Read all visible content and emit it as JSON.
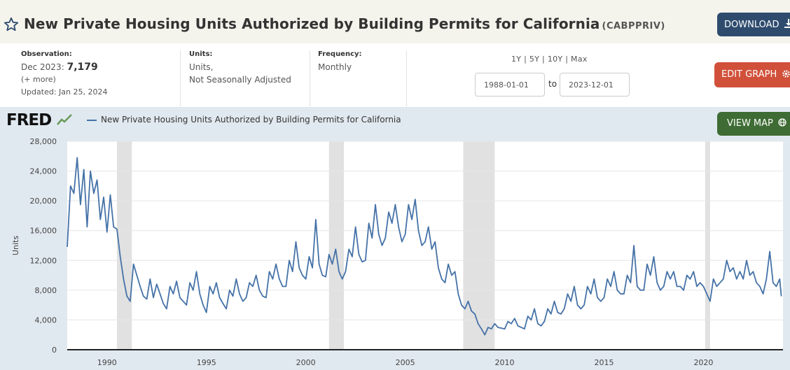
{
  "header": {
    "title": "New Private Housing Units Authorized by Building Permits for California",
    "series_id": "(CABPPRIV)",
    "download_label": "DOWNLOAD",
    "accent_color": "#2e4b6e"
  },
  "meta": {
    "observation_label": "Observation:",
    "observation_date": "Dec 2023:",
    "observation_value": "7,179",
    "more": "(+ more)",
    "updated": "Updated: Jan 25, 2024",
    "units_label": "Units:",
    "units_line1": "Units,",
    "units_line2": "Not Seasonally Adjusted",
    "frequency_label": "Frequency:",
    "frequency_value": "Monthly"
  },
  "range": {
    "options": "1Y | 5Y | 10Y | Max",
    "start": "1988-01-01",
    "to": "to",
    "end": "2023-12-01",
    "edit_label": "EDIT GRAPH"
  },
  "graph": {
    "logo": "FRED",
    "legend": "New Private Housing Units Authorized by Building Permits for California",
    "view_map_label": "VIEW MAP",
    "line_color": "#4572a7"
  },
  "chart_data": {
    "type": "line",
    "title": "",
    "xlabel": "",
    "ylabel": "Units",
    "xlim": [
      "1988-01",
      "2023-12"
    ],
    "ylim": [
      0,
      28000
    ],
    "y_ticks": [
      0,
      4000,
      8000,
      12000,
      16000,
      20000,
      24000,
      28000
    ],
    "y_tick_labels": [
      "0",
      "4,000",
      "8,000",
      "12,000",
      "16,000",
      "20,000",
      "24,000",
      "28,000"
    ],
    "x_ticks": [
      1990,
      1995,
      2000,
      2005,
      2010,
      2015,
      2020
    ],
    "x_tick_labels": [
      "1990",
      "1995",
      "2000",
      "2005",
      "2010",
      "2015",
      "2020"
    ],
    "grid": true,
    "recessions": [
      [
        "1990-07",
        "1991-03"
      ],
      [
        "2001-03",
        "2001-11"
      ],
      [
        "2007-12",
        "2009-06"
      ],
      [
        "2020-02",
        "2020-04"
      ]
    ],
    "series": [
      {
        "name": "New Private Housing Units Authorized by Building Permits for California",
        "points": [
          [
            "1988-01",
            13800
          ],
          [
            "1988-03",
            22000
          ],
          [
            "1988-05",
            21000
          ],
          [
            "1988-07",
            25800
          ],
          [
            "1988-09",
            19500
          ],
          [
            "1988-11",
            24200
          ],
          [
            "1989-01",
            16500
          ],
          [
            "1989-03",
            24000
          ],
          [
            "1989-05",
            21000
          ],
          [
            "1989-07",
            22800
          ],
          [
            "1989-09",
            17500
          ],
          [
            "1989-11",
            20500
          ],
          [
            "1990-01",
            15800
          ],
          [
            "1990-03",
            20800
          ],
          [
            "1990-05",
            16500
          ],
          [
            "1990-07",
            16200
          ],
          [
            "1990-09",
            12500
          ],
          [
            "1990-11",
            9500
          ],
          [
            "1991-01",
            7200
          ],
          [
            "1991-03",
            6500
          ],
          [
            "1991-05",
            11500
          ],
          [
            "1991-07",
            10000
          ],
          [
            "1991-09",
            8500
          ],
          [
            "1991-11",
            7200
          ],
          [
            "1992-01",
            6800
          ],
          [
            "1992-03",
            9500
          ],
          [
            "1992-05",
            7000
          ],
          [
            "1992-07",
            8800
          ],
          [
            "1992-09",
            7500
          ],
          [
            "1992-11",
            6200
          ],
          [
            "1993-01",
            5500
          ],
          [
            "1993-03",
            8500
          ],
          [
            "1993-05",
            7500
          ],
          [
            "1993-07",
            9200
          ],
          [
            "1993-09",
            7000
          ],
          [
            "1993-11",
            6500
          ],
          [
            "1994-01",
            6000
          ],
          [
            "1994-03",
            9000
          ],
          [
            "1994-05",
            8000
          ],
          [
            "1994-07",
            10500
          ],
          [
            "1994-09",
            7500
          ],
          [
            "1994-11",
            6000
          ],
          [
            "1995-01",
            5000
          ],
          [
            "1995-03",
            8500
          ],
          [
            "1995-05",
            7500
          ],
          [
            "1995-07",
            9000
          ],
          [
            "1995-09",
            7000
          ],
          [
            "1995-11",
            6200
          ],
          [
            "1996-01",
            5500
          ],
          [
            "1996-03",
            8000
          ],
          [
            "1996-05",
            7200
          ],
          [
            "1996-07",
            9500
          ],
          [
            "1996-09",
            7500
          ],
          [
            "1996-11",
            6500
          ],
          [
            "1997-01",
            7000
          ],
          [
            "1997-03",
            9000
          ],
          [
            "1997-05",
            8500
          ],
          [
            "1997-07",
            10000
          ],
          [
            "1997-09",
            8000
          ],
          [
            "1997-11",
            7200
          ],
          [
            "1998-01",
            7000
          ],
          [
            "1998-03",
            10500
          ],
          [
            "1998-05",
            9500
          ],
          [
            "1998-07",
            11500
          ],
          [
            "1998-09",
            9500
          ],
          [
            "1998-11",
            8500
          ],
          [
            "1999-01",
            8500
          ],
          [
            "1999-03",
            12000
          ],
          [
            "1999-05",
            10500
          ],
          [
            "1999-07",
            14500
          ],
          [
            "1999-09",
            11000
          ],
          [
            "1999-11",
            10000
          ],
          [
            "2000-01",
            9500
          ],
          [
            "2000-03",
            12500
          ],
          [
            "2000-05",
            11000
          ],
          [
            "2000-07",
            17500
          ],
          [
            "2000-09",
            11500
          ],
          [
            "2000-11",
            10000
          ],
          [
            "2001-01",
            9800
          ],
          [
            "2001-03",
            12800
          ],
          [
            "2001-05",
            11500
          ],
          [
            "2001-07",
            13500
          ],
          [
            "2001-09",
            10500
          ],
          [
            "2001-11",
            9500
          ],
          [
            "2002-01",
            10500
          ],
          [
            "2002-03",
            13500
          ],
          [
            "2002-05",
            12500
          ],
          [
            "2002-07",
            16500
          ],
          [
            "2002-09",
            12800
          ],
          [
            "2002-11",
            11800
          ],
          [
            "2003-01",
            12000
          ],
          [
            "2003-03",
            17000
          ],
          [
            "2003-05",
            15000
          ],
          [
            "2003-07",
            19500
          ],
          [
            "2003-09",
            15500
          ],
          [
            "2003-11",
            14000
          ],
          [
            "2004-01",
            15000
          ],
          [
            "2004-03",
            18500
          ],
          [
            "2004-05",
            17000
          ],
          [
            "2004-07",
            19500
          ],
          [
            "2004-09",
            16500
          ],
          [
            "2004-11",
            14500
          ],
          [
            "2005-01",
            15500
          ],
          [
            "2005-03",
            19500
          ],
          [
            "2005-05",
            17500
          ],
          [
            "2005-07",
            20200
          ],
          [
            "2005-09",
            16000
          ],
          [
            "2005-11",
            14000
          ],
          [
            "2006-01",
            14500
          ],
          [
            "2006-03",
            16500
          ],
          [
            "2006-05",
            13500
          ],
          [
            "2006-07",
            14500
          ],
          [
            "2006-09",
            11000
          ],
          [
            "2006-11",
            9500
          ],
          [
            "2007-01",
            9000
          ],
          [
            "2007-03",
            11500
          ],
          [
            "2007-05",
            10000
          ],
          [
            "2007-07",
            10500
          ],
          [
            "2007-09",
            7500
          ],
          [
            "2007-11",
            6000
          ],
          [
            "2008-01",
            5500
          ],
          [
            "2008-03",
            6500
          ],
          [
            "2008-05",
            5200
          ],
          [
            "2008-07",
            4800
          ],
          [
            "2008-09",
            3500
          ],
          [
            "2008-11",
            2800
          ],
          [
            "2009-01",
            2000
          ],
          [
            "2009-03",
            3000
          ],
          [
            "2009-05",
            2800
          ],
          [
            "2009-07",
            3500
          ],
          [
            "2009-09",
            3000
          ],
          [
            "2009-11",
            2900
          ],
          [
            "2010-01",
            2800
          ],
          [
            "2010-03",
            3800
          ],
          [
            "2010-05",
            3500
          ],
          [
            "2010-07",
            4200
          ],
          [
            "2010-09",
            3200
          ],
          [
            "2010-11",
            3000
          ],
          [
            "2011-01",
            2800
          ],
          [
            "2011-03",
            4500
          ],
          [
            "2011-05",
            4000
          ],
          [
            "2011-07",
            5500
          ],
          [
            "2011-09",
            3500
          ],
          [
            "2011-11",
            3200
          ],
          [
            "2012-01",
            3800
          ],
          [
            "2012-03",
            5500
          ],
          [
            "2012-05",
            4800
          ],
          [
            "2012-07",
            6500
          ],
          [
            "2012-09",
            5000
          ],
          [
            "2012-11",
            4800
          ],
          [
            "2013-01",
            5500
          ],
          [
            "2013-03",
            7500
          ],
          [
            "2013-05",
            6500
          ],
          [
            "2013-07",
            8500
          ],
          [
            "2013-09",
            6000
          ],
          [
            "2013-11",
            5500
          ],
          [
            "2014-01",
            6000
          ],
          [
            "2014-03",
            8500
          ],
          [
            "2014-05",
            7500
          ],
          [
            "2014-07",
            9500
          ],
          [
            "2014-09",
            7000
          ],
          [
            "2014-11",
            6500
          ],
          [
            "2015-01",
            7000
          ],
          [
            "2015-03",
            9500
          ],
          [
            "2015-05",
            8500
          ],
          [
            "2015-07",
            10500
          ],
          [
            "2015-09",
            8000
          ],
          [
            "2015-11",
            7500
          ],
          [
            "2016-01",
            7500
          ],
          [
            "2016-03",
            10000
          ],
          [
            "2016-05",
            9000
          ],
          [
            "2016-07",
            14000
          ],
          [
            "2016-09",
            8500
          ],
          [
            "2016-11",
            8000
          ],
          [
            "2017-01",
            8000
          ],
          [
            "2017-03",
            11500
          ],
          [
            "2017-05",
            10000
          ],
          [
            "2017-07",
            12500
          ],
          [
            "2017-09",
            9000
          ],
          [
            "2017-11",
            8000
          ],
          [
            "2018-01",
            8500
          ],
          [
            "2018-03",
            10500
          ],
          [
            "2018-05",
            9500
          ],
          [
            "2018-07",
            10500
          ],
          [
            "2018-09",
            8500
          ],
          [
            "2018-11",
            8500
          ],
          [
            "2019-01",
            8000
          ],
          [
            "2019-03",
            10000
          ],
          [
            "2019-05",
            9500
          ],
          [
            "2019-07",
            10500
          ],
          [
            "2019-09",
            8500
          ],
          [
            "2019-11",
            9000
          ],
          [
            "2020-01",
            8500
          ],
          [
            "2020-03",
            7500
          ],
          [
            "2020-05",
            6500
          ],
          [
            "2020-07",
            9500
          ],
          [
            "2020-09",
            8500
          ],
          [
            "2020-11",
            9000
          ],
          [
            "2021-01",
            9500
          ],
          [
            "2021-03",
            12000
          ],
          [
            "2021-05",
            10500
          ],
          [
            "2021-07",
            11000
          ],
          [
            "2021-09",
            9500
          ],
          [
            "2021-11",
            10500
          ],
          [
            "2022-01",
            9500
          ],
          [
            "2022-03",
            12000
          ],
          [
            "2022-05",
            10000
          ],
          [
            "2022-07",
            10500
          ],
          [
            "2022-09",
            9000
          ],
          [
            "2022-11",
            8500
          ],
          [
            "2023-01",
            7500
          ],
          [
            "2023-03",
            9500
          ],
          [
            "2023-05",
            13200
          ],
          [
            "2023-07",
            9000
          ],
          [
            "2023-09",
            8500
          ],
          [
            "2023-11",
            9500
          ],
          [
            "2023-12",
            7179
          ]
        ]
      }
    ]
  }
}
